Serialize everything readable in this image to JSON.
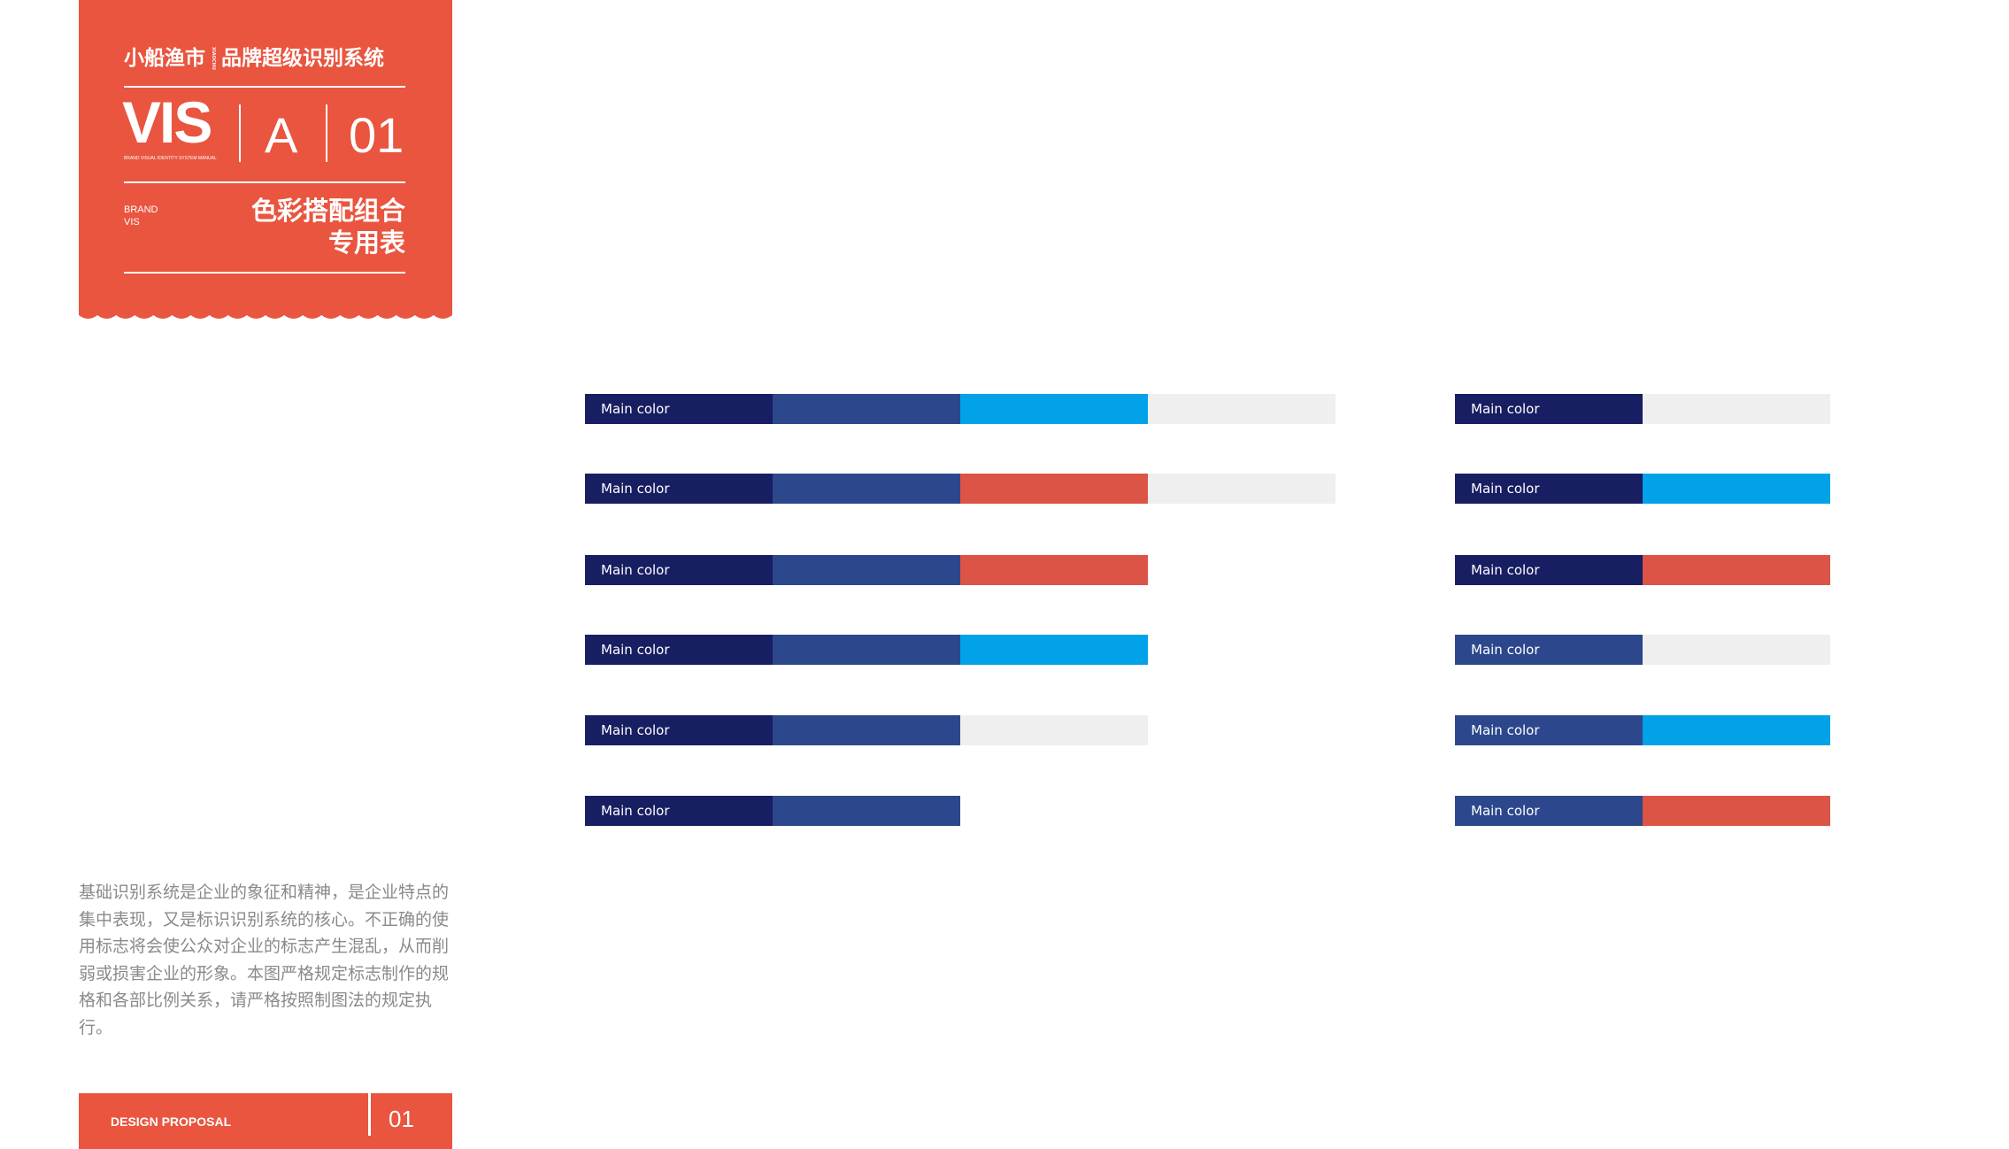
{
  "header": {
    "brand_name": "小船渔市",
    "brand_mini": "XIAOCHUAN YUSHI",
    "system_title": "品牌超级识别系统",
    "vis": "VIS",
    "vis_caption": "BRAND VISUAL IDENTITY SYSTEM MANUAL",
    "section_letter": "A",
    "section_number": "01",
    "brand_small_1": "BRAND",
    "brand_small_2": "VIS",
    "section_title_1": "色彩搭配组合",
    "section_title_2": "专用表"
  },
  "description": "基础识别系统是企业的象征和精神，是企业特点的集中表现，又是标识识别系统的核心。不正确的使用标志将会使公众对企业的标志产生混乱，从而削弱或损害企业的形象。本图严格规定标志制作的规格和各部比例关系，请严格按照制图法的规定执行。",
  "footer": {
    "label": "DESIGN PROPOSAL",
    "number": "01"
  },
  "colors": {
    "accent": "#e9553f",
    "navy": "#181e62",
    "blue": "#2c478c",
    "cyan": "#02a2e8",
    "red": "#dc5446",
    "gray": "#efefef"
  },
  "combos_left": [
    {
      "label": "Main color",
      "swatches": [
        "navy",
        "blue",
        "cyan",
        "gray"
      ]
    },
    {
      "label": "Main color",
      "swatches": [
        "navy",
        "blue",
        "red",
        "gray"
      ]
    },
    {
      "label": "Main color",
      "swatches": [
        "navy",
        "blue",
        "red"
      ]
    },
    {
      "label": "Main color",
      "swatches": [
        "navy",
        "blue",
        "cyan"
      ]
    },
    {
      "label": "Main color",
      "swatches": [
        "navy",
        "blue",
        "gray"
      ]
    },
    {
      "label": "Main color",
      "swatches": [
        "navy",
        "blue"
      ]
    }
  ],
  "combos_right": [
    {
      "label": "Main color",
      "swatches": [
        "navy",
        "gray"
      ]
    },
    {
      "label": "Main color",
      "swatches": [
        "navy",
        "cyan"
      ]
    },
    {
      "label": "Main color",
      "swatches": [
        "navy",
        "red"
      ]
    },
    {
      "label": "Main color",
      "swatches": [
        "blue",
        "gray"
      ]
    },
    {
      "label": "Main color",
      "swatches": [
        "blue",
        "cyan"
      ]
    },
    {
      "label": "Main color",
      "swatches": [
        "blue",
        "red"
      ]
    }
  ]
}
